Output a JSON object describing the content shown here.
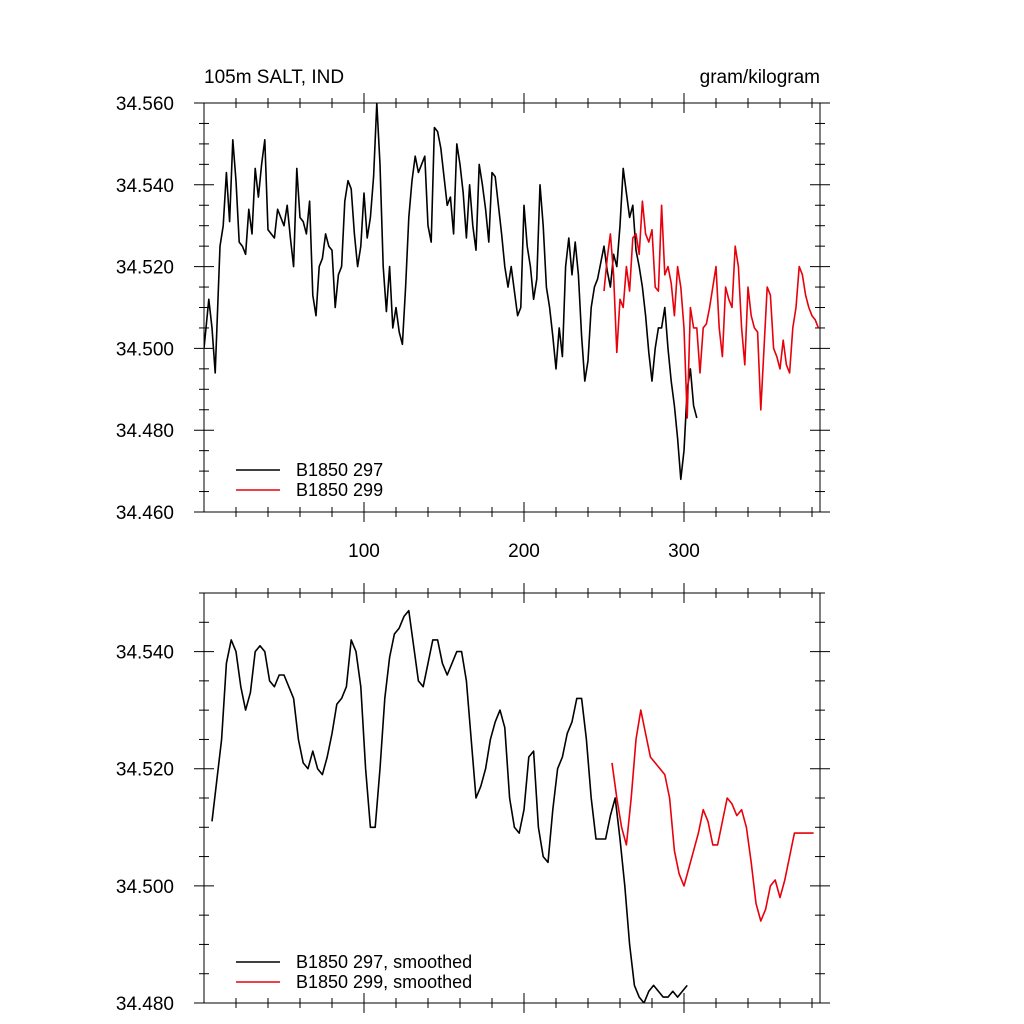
{
  "chart_data": [
    {
      "type": "line",
      "title_left": "105m SALT, IND",
      "title_right": "gram/kilogram",
      "xlim": [
        0,
        385
      ],
      "ylim": [
        34.46,
        34.56
      ],
      "x_ticks": [
        100,
        200,
        300
      ],
      "x_tick_labels": [
        "100",
        "200",
        "300"
      ],
      "y_ticks": [
        34.46,
        34.48,
        34.5,
        34.52,
        34.54,
        34.56
      ],
      "y_tick_labels": [
        "34.460",
        "34.480",
        "34.500",
        "34.520",
        "34.540",
        "34.560"
      ],
      "legend_position": "bottom-left",
      "series": [
        {
          "name": "B1850 297",
          "color": "#000000",
          "x": [
            0,
            3,
            5,
            7,
            10,
            12,
            14,
            16,
            18,
            20,
            22,
            24,
            26,
            28,
            30,
            32,
            34,
            36,
            38,
            40,
            42,
            44,
            46,
            48,
            50,
            52,
            54,
            56,
            58,
            60,
            62,
            64,
            66,
            68,
            70,
            72,
            74,
            76,
            78,
            80,
            82,
            84,
            86,
            88,
            90,
            92,
            94,
            96,
            98,
            100,
            102,
            104,
            106,
            108,
            110,
            112,
            114,
            116,
            118,
            120,
            122,
            124,
            126,
            128,
            130,
            132,
            134,
            136,
            138,
            140,
            142,
            144,
            146,
            148,
            150,
            152,
            154,
            156,
            158,
            160,
            162,
            164,
            166,
            168,
            170,
            172,
            174,
            176,
            178,
            180,
            182,
            184,
            186,
            188,
            190,
            192,
            194,
            196,
            198,
            200,
            202,
            204,
            206,
            208,
            210,
            212,
            214,
            216,
            218,
            220,
            222,
            224,
            226,
            228,
            230,
            232,
            234,
            236,
            238,
            240,
            242,
            244,
            246,
            248,
            250,
            252,
            254,
            256,
            258,
            260,
            262,
            264,
            266,
            268,
            270,
            272,
            274,
            276,
            278,
            280,
            282,
            284,
            286,
            288,
            290,
            292,
            294,
            296,
            298,
            300,
            302,
            304,
            306,
            308
          ],
          "y": [
            34.5,
            34.512,
            34.505,
            34.494,
            34.525,
            34.53,
            34.543,
            34.531,
            34.551,
            34.541,
            34.526,
            34.525,
            34.523,
            34.534,
            34.528,
            34.544,
            34.537,
            34.545,
            34.551,
            34.529,
            34.528,
            34.527,
            34.534,
            34.532,
            34.53,
            34.535,
            34.527,
            34.52,
            34.544,
            34.532,
            34.531,
            34.528,
            34.536,
            34.513,
            34.508,
            34.52,
            34.522,
            34.528,
            34.525,
            34.524,
            34.51,
            34.518,
            34.52,
            34.536,
            34.541,
            34.539,
            34.528,
            34.52,
            34.525,
            34.538,
            34.527,
            34.532,
            34.542,
            34.56,
            34.545,
            34.52,
            34.509,
            34.52,
            34.505,
            34.51,
            34.504,
            34.501,
            34.515,
            34.532,
            34.541,
            34.547,
            34.543,
            34.545,
            34.547,
            34.53,
            34.526,
            34.554,
            34.553,
            34.549,
            34.542,
            34.535,
            34.537,
            34.528,
            34.55,
            34.545,
            34.538,
            34.527,
            34.54,
            34.53,
            34.524,
            34.545,
            34.54,
            34.534,
            34.526,
            34.543,
            34.542,
            34.535,
            34.528,
            34.52,
            34.515,
            34.52,
            34.514,
            34.508,
            34.51,
            34.535,
            34.525,
            34.52,
            34.512,
            34.517,
            34.54,
            34.53,
            34.515,
            34.51,
            34.503,
            34.495,
            34.505,
            34.498,
            34.52,
            34.527,
            34.518,
            34.526,
            34.518,
            34.503,
            34.492,
            34.497,
            34.51,
            34.515,
            34.517,
            34.521,
            34.525,
            34.519,
            34.515,
            34.523,
            34.52,
            34.53,
            34.544,
            34.538,
            34.532,
            34.535,
            34.524,
            34.52,
            34.515,
            34.508,
            34.499,
            34.492,
            34.5,
            34.505,
            34.505,
            34.51,
            34.5,
            34.492,
            34.486,
            34.478,
            34.468,
            34.475,
            34.49,
            34.495,
            34.486,
            34.483
          ]
        },
        {
          "name": "B1850 299",
          "color": "#e8000b",
          "x": [
            250,
            252,
            254,
            256,
            258,
            260,
            262,
            264,
            266,
            268,
            270,
            272,
            274,
            276,
            278,
            280,
            282,
            284,
            286,
            288,
            290,
            292,
            294,
            296,
            298,
            300,
            302,
            304,
            306,
            308,
            310,
            312,
            314,
            316,
            318,
            320,
            322,
            324,
            326,
            328,
            330,
            332,
            334,
            336,
            338,
            340,
            342,
            344,
            346,
            348,
            350,
            352,
            354,
            356,
            358,
            360,
            362,
            364,
            366,
            368,
            370,
            372,
            374,
            376,
            378,
            380,
            382,
            384
          ],
          "y": [
            34.514,
            34.522,
            34.528,
            34.518,
            34.499,
            34.512,
            34.51,
            34.52,
            34.514,
            34.527,
            34.528,
            34.523,
            34.536,
            34.528,
            34.526,
            34.529,
            34.515,
            34.514,
            34.535,
            34.518,
            34.52,
            34.516,
            34.508,
            34.52,
            34.515,
            34.505,
            34.483,
            34.51,
            34.505,
            34.505,
            34.494,
            34.505,
            34.506,
            34.51,
            34.515,
            34.52,
            34.505,
            34.498,
            34.515,
            34.512,
            34.51,
            34.525,
            34.52,
            34.505,
            34.496,
            34.515,
            34.508,
            34.505,
            34.504,
            34.485,
            34.5,
            34.515,
            34.513,
            34.5,
            34.498,
            34.495,
            34.502,
            34.496,
            34.494,
            34.505,
            34.51,
            34.52,
            34.518,
            34.513,
            34.51,
            34.508,
            34.507,
            34.505
          ]
        }
      ]
    },
    {
      "type": "line",
      "xlim": [
        0,
        385
      ],
      "ylim": [
        34.48,
        34.55
      ],
      "x_ticks": [
        100,
        200,
        300
      ],
      "y_ticks": [
        34.48,
        34.5,
        34.52,
        34.54
      ],
      "y_tick_labels": [
        "34.480",
        "34.500",
        "34.520",
        "34.540"
      ],
      "legend_position": "bottom-left",
      "series": [
        {
          "name": "B1850 297, smoothed",
          "color": "#000000",
          "x": [
            5,
            8,
            11,
            14,
            17,
            20,
            23,
            26,
            29,
            32,
            35,
            38,
            41,
            44,
            47,
            50,
            53,
            56,
            59,
            62,
            65,
            68,
            71,
            74,
            77,
            80,
            83,
            86,
            89,
            92,
            95,
            98,
            101,
            104,
            107,
            110,
            113,
            116,
            119,
            122,
            125,
            128,
            131,
            134,
            137,
            140,
            143,
            146,
            149,
            152,
            155,
            158,
            161,
            164,
            167,
            170,
            173,
            176,
            179,
            182,
            185,
            188,
            191,
            194,
            197,
            200,
            203,
            206,
            209,
            212,
            215,
            218,
            221,
            224,
            227,
            230,
            233,
            236,
            239,
            242,
            245,
            248,
            251,
            254,
            257,
            260,
            263,
            266,
            269,
            272,
            275,
            278,
            281,
            284,
            287,
            290,
            293,
            296,
            299,
            302
          ],
          "y": [
            34.511,
            34.518,
            34.525,
            34.538,
            34.542,
            34.54,
            34.534,
            34.53,
            34.533,
            34.54,
            34.541,
            34.54,
            34.535,
            34.534,
            34.536,
            34.536,
            34.534,
            34.532,
            34.525,
            34.521,
            34.52,
            34.523,
            34.52,
            34.519,
            34.522,
            34.526,
            34.531,
            34.532,
            34.534,
            34.542,
            34.54,
            34.534,
            34.52,
            34.51,
            34.51,
            34.52,
            34.532,
            34.539,
            34.543,
            34.544,
            34.546,
            34.547,
            34.541,
            34.535,
            34.534,
            34.538,
            34.542,
            34.542,
            34.538,
            34.536,
            34.538,
            34.54,
            34.54,
            34.535,
            34.525,
            34.515,
            34.517,
            34.52,
            34.525,
            34.528,
            34.53,
            34.527,
            34.515,
            34.51,
            34.509,
            34.513,
            34.522,
            34.523,
            34.51,
            34.505,
            34.504,
            34.513,
            34.52,
            34.522,
            34.526,
            34.528,
            34.532,
            34.532,
            34.525,
            34.515,
            34.508,
            34.508,
            34.508,
            34.512,
            34.515,
            34.508,
            34.5,
            34.49,
            34.483,
            34.481,
            34.48,
            34.482,
            34.483,
            34.482,
            34.481,
            34.481,
            34.482,
            34.481,
            34.482,
            34.483
          ]
        },
        {
          "name": "B1850 299, smoothed",
          "color": "#e8000b",
          "x": [
            255,
            258,
            261,
            264,
            267,
            270,
            273,
            276,
            279,
            282,
            285,
            288,
            291,
            294,
            297,
            300,
            303,
            306,
            309,
            312,
            315,
            318,
            321,
            324,
            327,
            330,
            333,
            336,
            339,
            342,
            345,
            348,
            351,
            354,
            357,
            360,
            363,
            366,
            369,
            372,
            375,
            378,
            381
          ],
          "y": [
            34.521,
            34.515,
            34.51,
            34.507,
            34.515,
            34.525,
            34.53,
            34.526,
            34.522,
            34.521,
            34.52,
            34.519,
            34.515,
            34.506,
            34.502,
            34.5,
            34.503,
            34.506,
            34.509,
            34.513,
            34.511,
            34.507,
            34.507,
            34.511,
            34.515,
            34.514,
            34.512,
            34.513,
            34.51,
            34.504,
            34.497,
            34.494,
            34.496,
            34.5,
            34.501,
            34.498,
            34.501,
            34.505,
            34.509,
            34.509,
            34.509,
            34.509,
            34.509
          ]
        }
      ]
    }
  ]
}
